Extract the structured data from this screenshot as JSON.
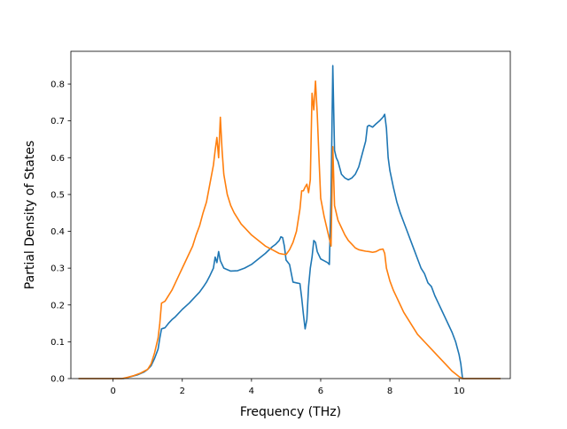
{
  "chart_data": {
    "type": "line",
    "title": "",
    "xlabel": "Frequency (THz)",
    "ylabel": "Partial Density of States",
    "xlim": [
      -1.22,
      11.48
    ],
    "ylim": [
      0.0,
      0.889
    ],
    "xticks": [
      0,
      2,
      4,
      6,
      8,
      10
    ],
    "xtick_labels": [
      "0",
      "2",
      "4",
      "6",
      "8",
      "10"
    ],
    "yticks": [
      0.0,
      0.1,
      0.2,
      0.3,
      0.4,
      0.5,
      0.6,
      0.7,
      0.8
    ],
    "ytick_labels": [
      "0.0",
      "0.1",
      "0.2",
      "0.3",
      "0.4",
      "0.5",
      "0.6",
      "0.7",
      "0.8"
    ],
    "grid": false,
    "legend": "none",
    "series": [
      {
        "color": "#1f77b4",
        "points": [
          [
            -1.0,
            0.0
          ],
          [
            0.0,
            0.0
          ],
          [
            0.3,
            0.0
          ],
          [
            0.5,
            0.005
          ],
          [
            0.7,
            0.01
          ],
          [
            0.9,
            0.018
          ],
          [
            1.0,
            0.025
          ],
          [
            1.1,
            0.035
          ],
          [
            1.2,
            0.055
          ],
          [
            1.3,
            0.08
          ],
          [
            1.35,
            0.11
          ],
          [
            1.4,
            0.135
          ],
          [
            1.5,
            0.138
          ],
          [
            1.6,
            0.15
          ],
          [
            1.7,
            0.16
          ],
          [
            1.8,
            0.168
          ],
          [
            1.9,
            0.178
          ],
          [
            2.0,
            0.188
          ],
          [
            2.2,
            0.205
          ],
          [
            2.4,
            0.225
          ],
          [
            2.5,
            0.235
          ],
          [
            2.6,
            0.248
          ],
          [
            2.7,
            0.262
          ],
          [
            2.8,
            0.28
          ],
          [
            2.9,
            0.3
          ],
          [
            2.95,
            0.33
          ],
          [
            3.0,
            0.315
          ],
          [
            3.05,
            0.345
          ],
          [
            3.1,
            0.32
          ],
          [
            3.2,
            0.3
          ],
          [
            3.4,
            0.292
          ],
          [
            3.6,
            0.293
          ],
          [
            3.8,
            0.3
          ],
          [
            4.0,
            0.31
          ],
          [
            4.2,
            0.325
          ],
          [
            4.4,
            0.34
          ],
          [
            4.6,
            0.358
          ],
          [
            4.7,
            0.365
          ],
          [
            4.8,
            0.375
          ],
          [
            4.85,
            0.385
          ],
          [
            4.9,
            0.383
          ],
          [
            4.95,
            0.36
          ],
          [
            5.0,
            0.322
          ],
          [
            5.1,
            0.31
          ],
          [
            5.2,
            0.262
          ],
          [
            5.3,
            0.26
          ],
          [
            5.4,
            0.258
          ],
          [
            5.45,
            0.22
          ],
          [
            5.5,
            0.175
          ],
          [
            5.55,
            0.135
          ],
          [
            5.6,
            0.16
          ],
          [
            5.65,
            0.25
          ],
          [
            5.7,
            0.3
          ],
          [
            5.75,
            0.33
          ],
          [
            5.8,
            0.375
          ],
          [
            5.85,
            0.37
          ],
          [
            5.9,
            0.345
          ],
          [
            6.0,
            0.325
          ],
          [
            6.1,
            0.32
          ],
          [
            6.2,
            0.315
          ],
          [
            6.25,
            0.31
          ],
          [
            6.3,
            0.5
          ],
          [
            6.35,
            0.85
          ],
          [
            6.4,
            0.62
          ],
          [
            6.45,
            0.6
          ],
          [
            6.5,
            0.59
          ],
          [
            6.6,
            0.555
          ],
          [
            6.7,
            0.545
          ],
          [
            6.8,
            0.54
          ],
          [
            6.9,
            0.545
          ],
          [
            7.0,
            0.555
          ],
          [
            7.1,
            0.575
          ],
          [
            7.2,
            0.61
          ],
          [
            7.3,
            0.645
          ],
          [
            7.35,
            0.685
          ],
          [
            7.4,
            0.688
          ],
          [
            7.5,
            0.683
          ],
          [
            7.6,
            0.692
          ],
          [
            7.7,
            0.7
          ],
          [
            7.8,
            0.71
          ],
          [
            7.85,
            0.718
          ],
          [
            7.9,
            0.68
          ],
          [
            7.95,
            0.6
          ],
          [
            8.0,
            0.565
          ],
          [
            8.1,
            0.52
          ],
          [
            8.2,
            0.48
          ],
          [
            8.3,
            0.45
          ],
          [
            8.4,
            0.425
          ],
          [
            8.5,
            0.4
          ],
          [
            8.6,
            0.375
          ],
          [
            8.7,
            0.35
          ],
          [
            8.8,
            0.325
          ],
          [
            8.9,
            0.3
          ],
          [
            9.0,
            0.285
          ],
          [
            9.1,
            0.26
          ],
          [
            9.2,
            0.25
          ],
          [
            9.3,
            0.225
          ],
          [
            9.4,
            0.205
          ],
          [
            9.5,
            0.185
          ],
          [
            9.6,
            0.165
          ],
          [
            9.7,
            0.145
          ],
          [
            9.8,
            0.125
          ],
          [
            9.9,
            0.1
          ],
          [
            10.0,
            0.065
          ],
          [
            10.05,
            0.04
          ],
          [
            10.1,
            0.0
          ],
          [
            11.2,
            0.0
          ]
        ]
      },
      {
        "color": "#ff7f0e",
        "points": [
          [
            -1.0,
            0.0
          ],
          [
            0.0,
            0.0
          ],
          [
            0.25,
            0.0
          ],
          [
            0.4,
            0.003
          ],
          [
            0.6,
            0.008
          ],
          [
            0.8,
            0.015
          ],
          [
            1.0,
            0.025
          ],
          [
            1.1,
            0.04
          ],
          [
            1.2,
            0.07
          ],
          [
            1.3,
            0.11
          ],
          [
            1.35,
            0.15
          ],
          [
            1.4,
            0.205
          ],
          [
            1.5,
            0.21
          ],
          [
            1.6,
            0.225
          ],
          [
            1.7,
            0.24
          ],
          [
            1.8,
            0.26
          ],
          [
            1.9,
            0.28
          ],
          [
            2.0,
            0.3
          ],
          [
            2.2,
            0.34
          ],
          [
            2.3,
            0.36
          ],
          [
            2.4,
            0.39
          ],
          [
            2.5,
            0.415
          ],
          [
            2.6,
            0.45
          ],
          [
            2.7,
            0.48
          ],
          [
            2.8,
            0.53
          ],
          [
            2.9,
            0.58
          ],
          [
            2.95,
            0.62
          ],
          [
            3.0,
            0.655
          ],
          [
            3.05,
            0.6
          ],
          [
            3.1,
            0.71
          ],
          [
            3.15,
            0.62
          ],
          [
            3.2,
            0.555
          ],
          [
            3.3,
            0.5
          ],
          [
            3.4,
            0.47
          ],
          [
            3.5,
            0.45
          ],
          [
            3.6,
            0.435
          ],
          [
            3.7,
            0.42
          ],
          [
            3.8,
            0.41
          ],
          [
            4.0,
            0.39
          ],
          [
            4.2,
            0.375
          ],
          [
            4.4,
            0.36
          ],
          [
            4.6,
            0.35
          ],
          [
            4.8,
            0.34
          ],
          [
            4.9,
            0.338
          ],
          [
            5.0,
            0.337
          ],
          [
            5.1,
            0.35
          ],
          [
            5.2,
            0.37
          ],
          [
            5.3,
            0.4
          ],
          [
            5.4,
            0.46
          ],
          [
            5.45,
            0.51
          ],
          [
            5.5,
            0.51
          ],
          [
            5.55,
            0.52
          ],
          [
            5.6,
            0.528
          ],
          [
            5.65,
            0.505
          ],
          [
            5.7,
            0.54
          ],
          [
            5.75,
            0.775
          ],
          [
            5.8,
            0.73
          ],
          [
            5.85,
            0.808
          ],
          [
            5.9,
            0.72
          ],
          [
            5.95,
            0.6
          ],
          [
            6.0,
            0.49
          ],
          [
            6.1,
            0.44
          ],
          [
            6.2,
            0.4
          ],
          [
            6.3,
            0.36
          ],
          [
            6.35,
            0.63
          ],
          [
            6.4,
            0.47
          ],
          [
            6.5,
            0.43
          ],
          [
            6.6,
            0.41
          ],
          [
            6.7,
            0.39
          ],
          [
            6.8,
            0.375
          ],
          [
            6.9,
            0.365
          ],
          [
            7.0,
            0.355
          ],
          [
            7.1,
            0.35
          ],
          [
            7.2,
            0.348
          ],
          [
            7.3,
            0.346
          ],
          [
            7.4,
            0.345
          ],
          [
            7.5,
            0.343
          ],
          [
            7.6,
            0.345
          ],
          [
            7.7,
            0.35
          ],
          [
            7.8,
            0.352
          ],
          [
            7.85,
            0.34
          ],
          [
            7.9,
            0.3
          ],
          [
            8.0,
            0.265
          ],
          [
            8.1,
            0.24
          ],
          [
            8.2,
            0.22
          ],
          [
            8.3,
            0.2
          ],
          [
            8.4,
            0.18
          ],
          [
            8.5,
            0.165
          ],
          [
            8.6,
            0.15
          ],
          [
            8.7,
            0.135
          ],
          [
            8.8,
            0.12
          ],
          [
            8.9,
            0.11
          ],
          [
            9.0,
            0.1
          ],
          [
            9.2,
            0.08
          ],
          [
            9.4,
            0.06
          ],
          [
            9.6,
            0.04
          ],
          [
            9.8,
            0.02
          ],
          [
            10.0,
            0.005
          ],
          [
            10.1,
            0.0
          ],
          [
            11.2,
            0.0
          ]
        ]
      }
    ]
  }
}
